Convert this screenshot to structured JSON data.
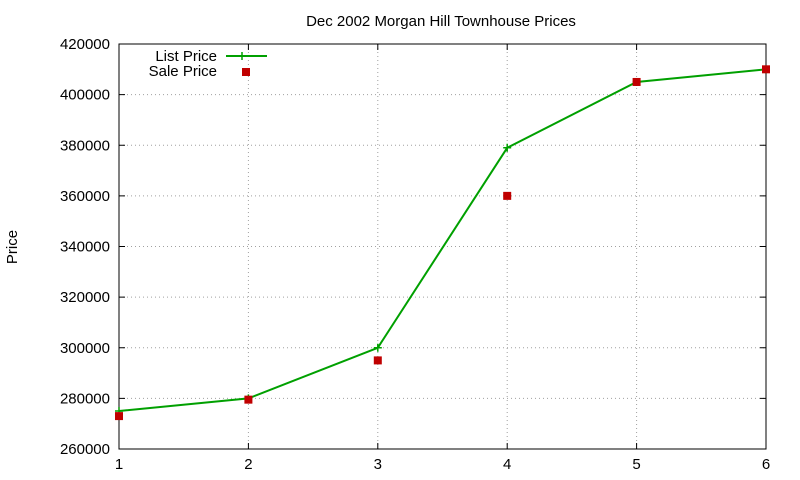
{
  "chart_data": {
    "type": "line",
    "title": "Dec 2002 Morgan Hill Townhouse Prices",
    "xlabel": "",
    "ylabel": "Price",
    "x": [
      1,
      2,
      3,
      4,
      5,
      6
    ],
    "xlim": [
      1,
      6
    ],
    "ylim": [
      260000,
      420000
    ],
    "xticks": [
      "1",
      "2",
      "3",
      "4",
      "5",
      "6"
    ],
    "yticks": [
      "260000",
      "280000",
      "300000",
      "320000",
      "340000",
      "360000",
      "380000",
      "400000",
      "420000"
    ],
    "grid": true,
    "legend_position": "top-left",
    "series": [
      {
        "name": "List Price",
        "style": "line-plus",
        "color": "#00a000",
        "values": [
          275000,
          280000,
          300000,
          379000,
          405000,
          410000
        ]
      },
      {
        "name": "Sale Price",
        "style": "square-points",
        "color": "#c00000",
        "values": [
          273000,
          279500,
          295000,
          360000,
          405000,
          410000
        ]
      }
    ]
  }
}
